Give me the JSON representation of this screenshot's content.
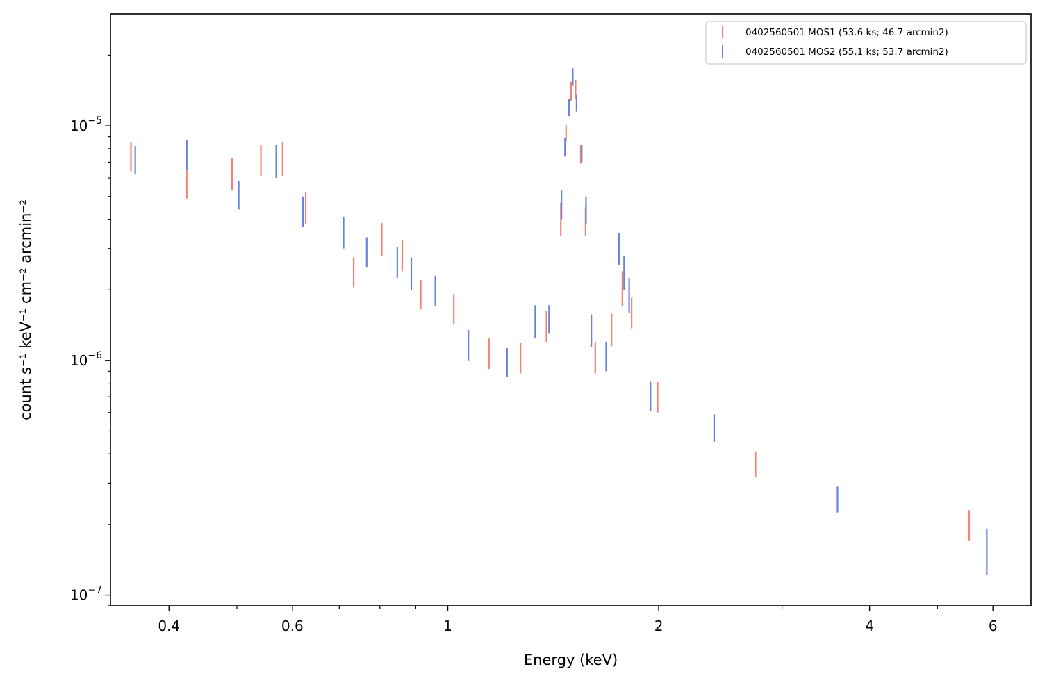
{
  "chart_data": {
    "type": "errorbar",
    "xlabel": "Energy (keV)",
    "ylabel": "count s⁻¹ keV⁻¹ cm⁻² arcmin⁻²",
    "xscale": "log",
    "yscale": "log",
    "xlim": [
      0.33,
      6.8
    ],
    "ylim": [
      9e-08,
      3e-05
    ],
    "x_major_ticks": [
      {
        "value": 0.4,
        "label": "0.4"
      },
      {
        "value": 0.6,
        "label": "0.6"
      },
      {
        "value": 1,
        "label": "1"
      },
      {
        "value": 2,
        "label": "2"
      },
      {
        "value": 4,
        "label": "4"
      },
      {
        "value": 6,
        "label": "6"
      }
    ],
    "y_major_ticks": [
      {
        "value": 1e-07,
        "mantissa": "10",
        "exponent": "−7"
      },
      {
        "value": 1e-06,
        "mantissa": "10",
        "exponent": "−6"
      },
      {
        "value": 1e-05,
        "mantissa": "10",
        "exponent": "−5"
      }
    ],
    "grid": false,
    "legend_position": "top-right",
    "series": [
      {
        "name": "0402560501 MOS1 (53.6 ks; 46.7 arcmin2)",
        "color": "#fa8072",
        "points": [
          {
            "x": 0.353,
            "ylo": 6.4e-06,
            "yhi": 8.5e-06
          },
          {
            "x": 0.424,
            "ylo": 4.9e-06,
            "yhi": 6.6e-06
          },
          {
            "x": 0.492,
            "ylo": 5.3e-06,
            "yhi": 7.3e-06
          },
          {
            "x": 0.541,
            "ylo": 6.1e-06,
            "yhi": 8.3e-06
          },
          {
            "x": 0.581,
            "ylo": 6.1e-06,
            "yhi": 8.5e-06
          },
          {
            "x": 0.627,
            "ylo": 3.8e-06,
            "yhi": 5.2e-06
          },
          {
            "x": 0.734,
            "ylo": 2.05e-06,
            "yhi": 2.75e-06
          },
          {
            "x": 0.805,
            "ylo": 2.8e-06,
            "yhi": 3.85e-06
          },
          {
            "x": 0.861,
            "ylo": 2.4e-06,
            "yhi": 3.25e-06
          },
          {
            "x": 0.915,
            "ylo": 1.65e-06,
            "yhi": 2.2e-06
          },
          {
            "x": 1.02,
            "ylo": 1.42e-06,
            "yhi": 1.92e-06
          },
          {
            "x": 1.145,
            "ylo": 9.2e-07,
            "yhi": 1.24e-06
          },
          {
            "x": 1.27,
            "ylo": 8.8e-07,
            "yhi": 1.19e-06
          },
          {
            "x": 1.383,
            "ylo": 1.2e-06,
            "yhi": 1.62e-06
          },
          {
            "x": 1.45,
            "ylo": 3.4e-06,
            "yhi": 4.7e-06
          },
          {
            "x": 1.475,
            "ylo": 8.6e-06,
            "yhi": 1.01e-05
          },
          {
            "x": 1.5,
            "ylo": 1.28e-05,
            "yhi": 1.54e-05
          },
          {
            "x": 1.522,
            "ylo": 1.3e-05,
            "yhi": 1.57e-05
          },
          {
            "x": 1.548,
            "ylo": 6.9e-06,
            "yhi": 8.3e-06
          },
          {
            "x": 1.573,
            "ylo": 3.4e-06,
            "yhi": 4.5e-06
          },
          {
            "x": 1.624,
            "ylo": 8.8e-07,
            "yhi": 1.2e-06
          },
          {
            "x": 1.713,
            "ylo": 1.15e-06,
            "yhi": 1.58e-06
          },
          {
            "x": 1.775,
            "ylo": 1.7e-06,
            "yhi": 2.4e-06
          },
          {
            "x": 1.83,
            "ylo": 1.37e-06,
            "yhi": 1.85e-06
          },
          {
            "x": 1.993,
            "ylo": 6e-07,
            "yhi": 8.1e-07
          },
          {
            "x": 2.75,
            "ylo": 3.2e-07,
            "yhi": 4.1e-07
          },
          {
            "x": 5.55,
            "ylo": 1.7e-07,
            "yhi": 2.3e-07
          }
        ]
      },
      {
        "name": "0402560501 MOS2 (55.1 ks; 53.7 arcmin2)",
        "color": "#6482de",
        "points": [
          {
            "x": 0.358,
            "ylo": 6.2e-06,
            "yhi": 8.2e-06
          },
          {
            "x": 0.424,
            "ylo": 6.5e-06,
            "yhi": 8.7e-06
          },
          {
            "x": 0.503,
            "ylo": 4.4e-06,
            "yhi": 5.8e-06
          },
          {
            "x": 0.569,
            "ylo": 6e-06,
            "yhi": 8.3e-06
          },
          {
            "x": 0.621,
            "ylo": 3.7e-06,
            "yhi": 5e-06
          },
          {
            "x": 0.71,
            "ylo": 3e-06,
            "yhi": 4.1e-06
          },
          {
            "x": 0.766,
            "ylo": 2.5e-06,
            "yhi": 3.35e-06
          },
          {
            "x": 0.847,
            "ylo": 2.25e-06,
            "yhi": 3.05e-06
          },
          {
            "x": 0.887,
            "ylo": 2e-06,
            "yhi": 2.75e-06
          },
          {
            "x": 0.96,
            "ylo": 1.7e-06,
            "yhi": 2.3e-06
          },
          {
            "x": 1.07,
            "ylo": 1e-06,
            "yhi": 1.35e-06
          },
          {
            "x": 1.215,
            "ylo": 8.5e-07,
            "yhi": 1.13e-06
          },
          {
            "x": 1.333,
            "ylo": 1.25e-06,
            "yhi": 1.72e-06
          },
          {
            "x": 1.395,
            "ylo": 1.3e-06,
            "yhi": 1.72e-06
          },
          {
            "x": 1.453,
            "ylo": 4e-06,
            "yhi": 5.3e-06
          },
          {
            "x": 1.47,
            "ylo": 7.4e-06,
            "yhi": 8.9e-06
          },
          {
            "x": 1.49,
            "ylo": 1.1e-05,
            "yhi": 1.3e-05
          },
          {
            "x": 1.508,
            "ylo": 1.48e-05,
            "yhi": 1.76e-05
          },
          {
            "x": 1.527,
            "ylo": 1.15e-05,
            "yhi": 1.35e-05
          },
          {
            "x": 1.553,
            "ylo": 7e-06,
            "yhi": 8.3e-06
          },
          {
            "x": 1.575,
            "ylo": 3.8e-06,
            "yhi": 5e-06
          },
          {
            "x": 1.603,
            "ylo": 1.14e-06,
            "yhi": 1.57e-06
          },
          {
            "x": 1.683,
            "ylo": 9e-07,
            "yhi": 1.2e-06
          },
          {
            "x": 1.755,
            "ylo": 2.55e-06,
            "yhi": 3.5e-06
          },
          {
            "x": 1.785,
            "ylo": 2e-06,
            "yhi": 2.8e-06
          },
          {
            "x": 1.815,
            "ylo": 1.6e-06,
            "yhi": 2.25e-06
          },
          {
            "x": 1.947,
            "ylo": 6.1e-07,
            "yhi": 8.1e-07
          },
          {
            "x": 2.4,
            "ylo": 4.5e-07,
            "yhi": 5.9e-07
          },
          {
            "x": 3.6,
            "ylo": 2.25e-07,
            "yhi": 2.9e-07
          },
          {
            "x": 5.88,
            "ylo": 1.22e-07,
            "yhi": 1.92e-07
          }
        ]
      }
    ]
  }
}
